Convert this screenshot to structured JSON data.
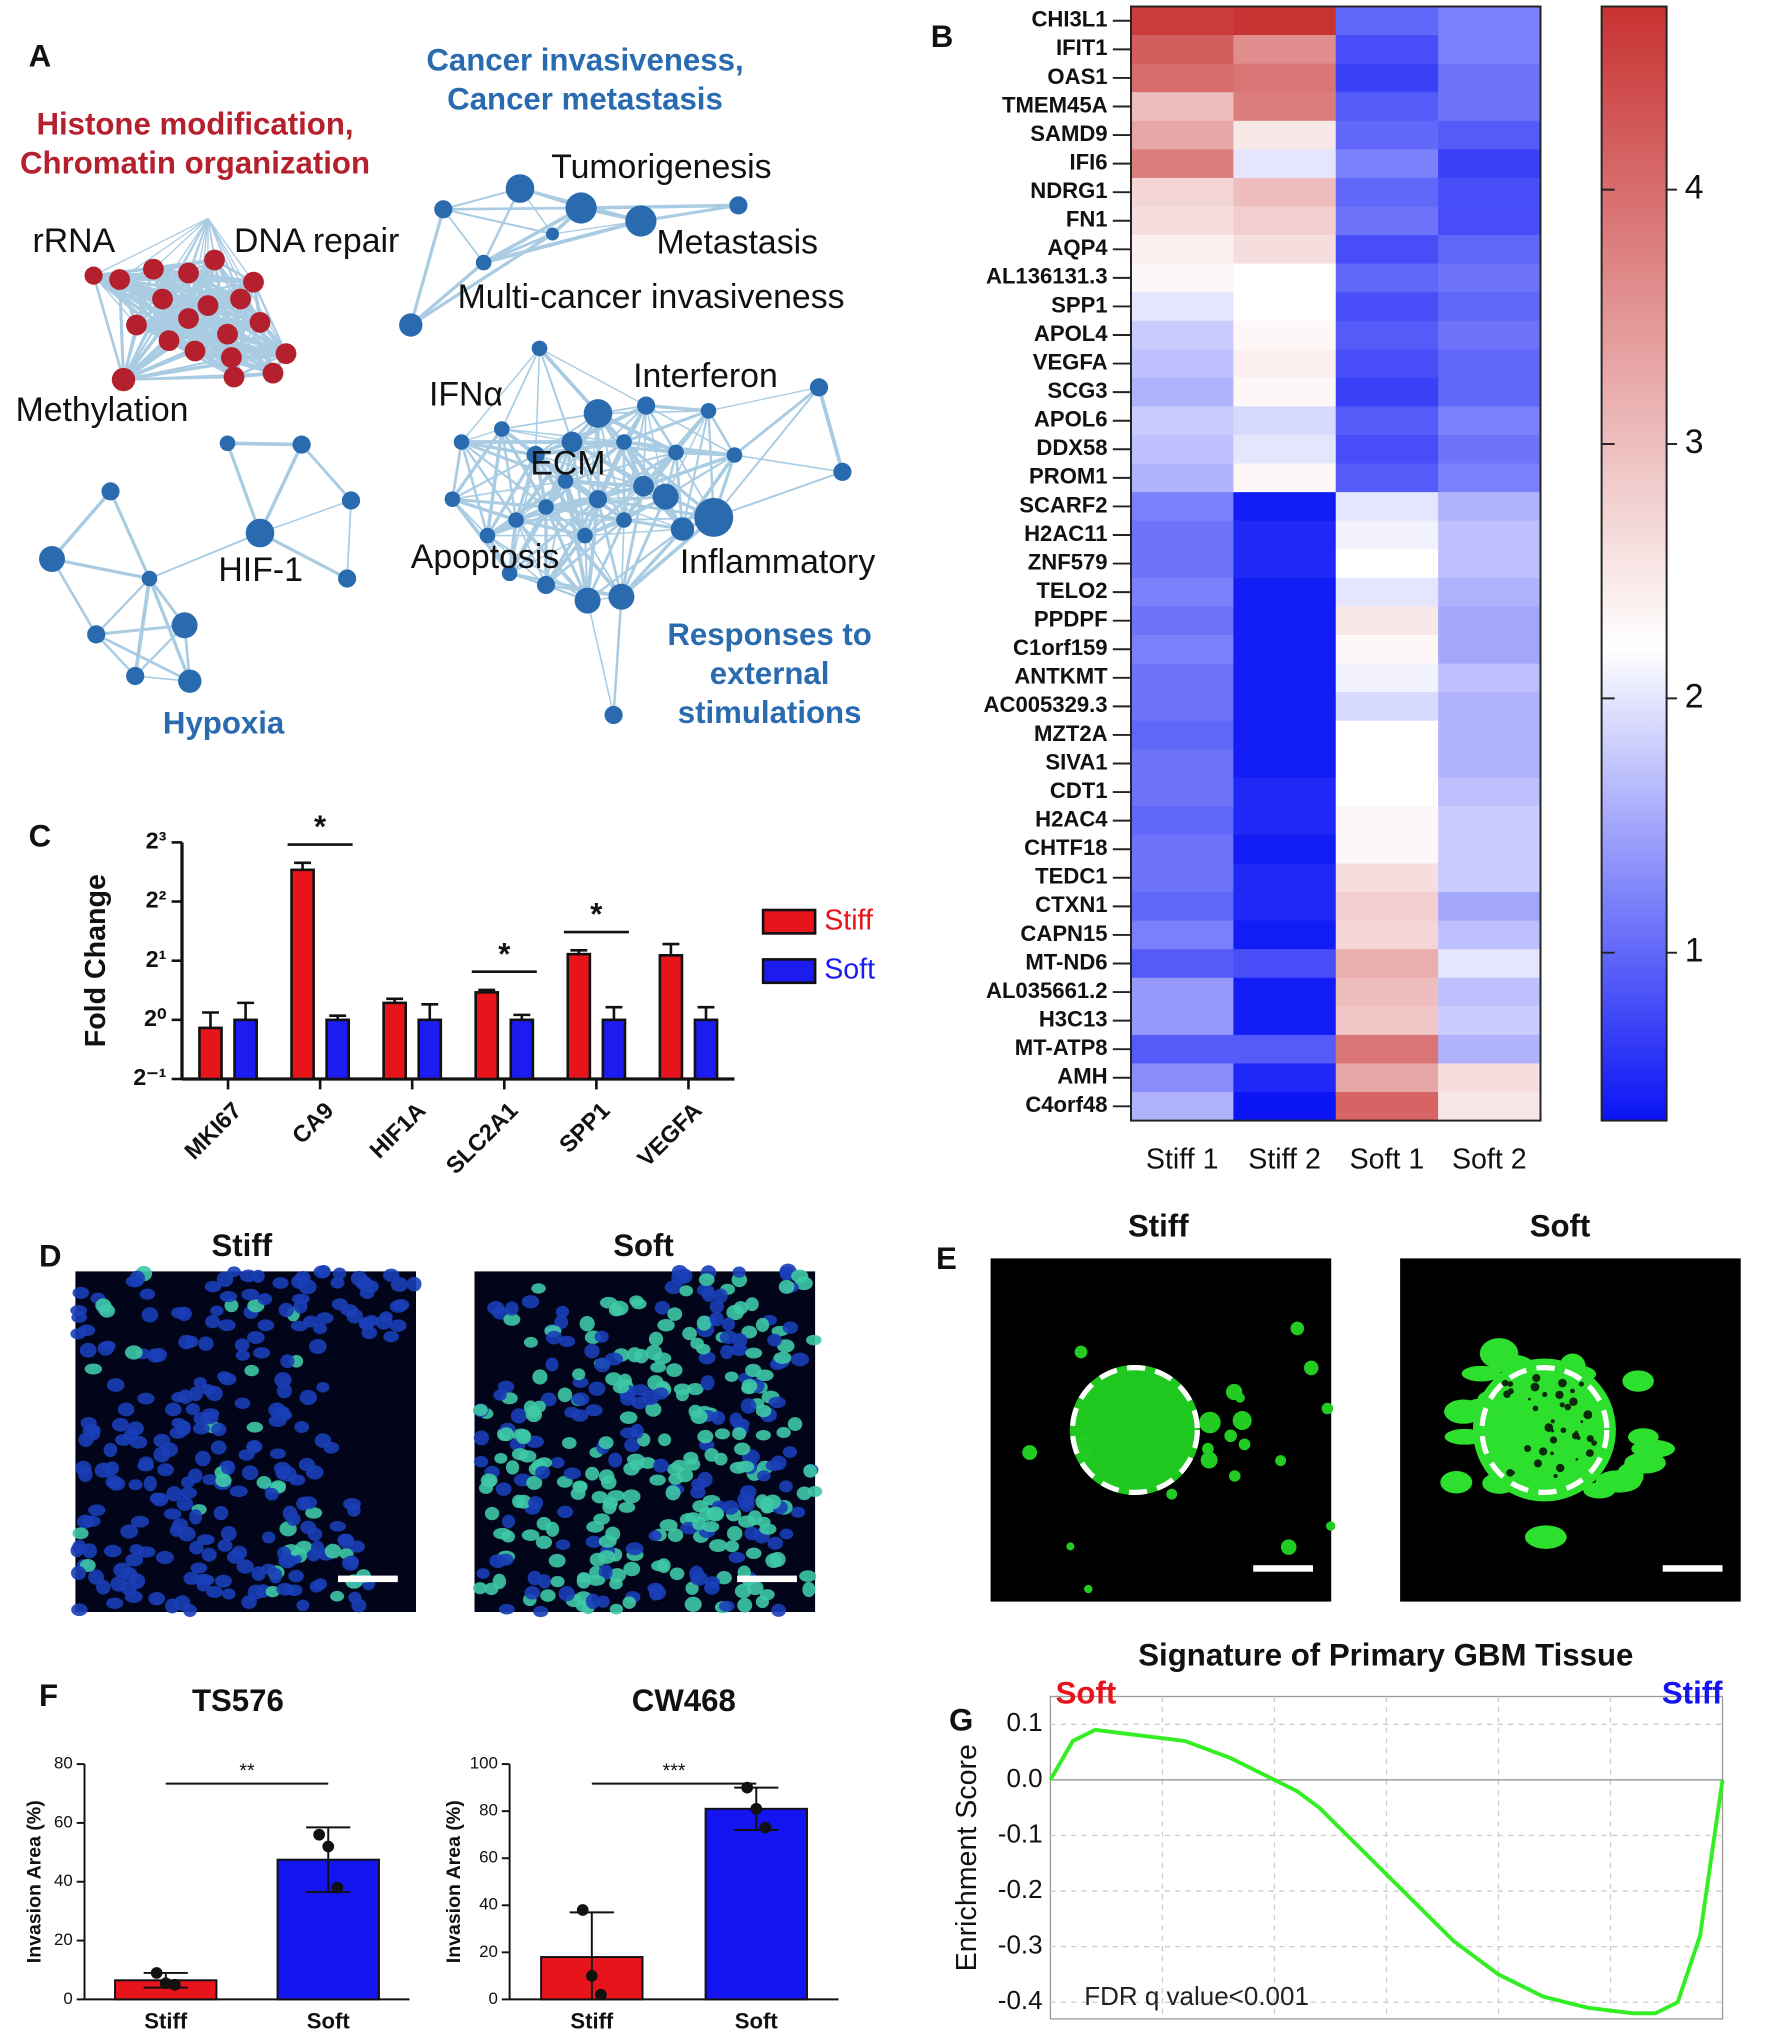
{
  "panel_labels": [
    "A",
    "B",
    "C",
    "D",
    "E",
    "F",
    "G"
  ],
  "network": {
    "clusters": [
      {
        "title": [
          "Histone modification,",
          "Chromatin organization"
        ],
        "color": "#b5202e"
      },
      {
        "title": [
          "Cancer invasiveness,",
          "Cancer metastasis"
        ],
        "color": "#2a6bb0"
      },
      {
        "title": [
          "Hypoxia"
        ],
        "color": "#2a6bb0"
      },
      {
        "title": [
          "Responses to",
          "external",
          "stimulations"
        ],
        "color": "#2a6bb0"
      }
    ],
    "terms": [
      "rRNA",
      "DNA repair",
      "Methylation",
      "Tumorigenesis",
      "Metastasis",
      "Multi-cancer invasiveness",
      "IFNα",
      "Interferon",
      "ECM",
      "Apoptosis",
      "Inflammatory",
      "HIF-1"
    ]
  },
  "images": {
    "D": {
      "titles": [
        "Stiff",
        "Soft"
      ]
    },
    "E": {
      "titles": [
        "Stiff",
        "Soft"
      ]
    }
  },
  "chart_data": [
    {
      "type": "heatmap",
      "rows": [
        "CHI3L1",
        "IFIT1",
        "OAS1",
        "TMEM45A",
        "SAMD9",
        "IFI6",
        "NDRG1",
        "FN1",
        "AQP4",
        "AL136131.3",
        "SPP1",
        "APOL4",
        "VEGFA",
        "SCG3",
        "APOL6",
        "DDX58",
        "PROM1",
        "SCARF2",
        "H2AC11",
        "ZNF579",
        "TELO2",
        "PPDPF",
        "C1orf159",
        "ANTKMT",
        "AC005329.3",
        "MZT2A",
        "SIVA1",
        "CDT1",
        "H2AC4",
        "CHTF18",
        "TEDC1",
        "CTXN1",
        "CAPN15",
        "MT-ND6",
        "AL035661.2",
        "H3C13",
        "MT-ATP8",
        "AMH",
        "C4orf48"
      ],
      "columns": [
        "Stiff 1",
        "Stiff 2",
        "Soft 1",
        "Soft 2"
      ],
      "values": [
        [
          4.6,
          4.7,
          1.0,
          1.2
        ],
        [
          4.2,
          3.6,
          0.8,
          1.2
        ],
        [
          4.0,
          3.9,
          0.7,
          1.1
        ],
        [
          3.0,
          3.8,
          0.9,
          1.1
        ],
        [
          3.3,
          2.5,
          1.0,
          0.9
        ],
        [
          3.8,
          2.0,
          1.2,
          0.7
        ],
        [
          2.7,
          3.0,
          1.0,
          0.8
        ],
        [
          2.6,
          2.8,
          1.1,
          0.8
        ],
        [
          2.4,
          2.6,
          0.8,
          1.0
        ],
        [
          2.3,
          2.2,
          1.0,
          1.1
        ],
        [
          2.0,
          2.2,
          0.8,
          1.0
        ],
        [
          1.8,
          2.3,
          0.9,
          1.1
        ],
        [
          1.7,
          2.4,
          0.8,
          1.0
        ],
        [
          1.6,
          2.3,
          0.7,
          1.0
        ],
        [
          1.8,
          1.9,
          0.9,
          1.2
        ],
        [
          1.7,
          2.0,
          0.8,
          1.1
        ],
        [
          1.6,
          2.3,
          0.9,
          1.2
        ],
        [
          1.2,
          0.4,
          2.0,
          1.6
        ],
        [
          1.1,
          0.5,
          2.1,
          1.7
        ],
        [
          1.1,
          0.5,
          2.2,
          1.7
        ],
        [
          1.2,
          0.4,
          2.0,
          1.6
        ],
        [
          1.1,
          0.4,
          2.5,
          1.5
        ],
        [
          1.2,
          0.4,
          2.3,
          1.5
        ],
        [
          1.1,
          0.4,
          2.1,
          1.7
        ],
        [
          1.1,
          0.4,
          1.9,
          1.6
        ],
        [
          1.0,
          0.4,
          2.2,
          1.6
        ],
        [
          1.1,
          0.4,
          2.2,
          1.6
        ],
        [
          1.1,
          0.5,
          2.2,
          1.7
        ],
        [
          1.0,
          0.5,
          2.3,
          1.8
        ],
        [
          1.1,
          0.4,
          2.3,
          1.8
        ],
        [
          1.1,
          0.5,
          2.6,
          1.8
        ],
        [
          1.0,
          0.5,
          2.8,
          1.5
        ],
        [
          1.2,
          0.4,
          2.7,
          1.7
        ],
        [
          0.9,
          0.8,
          3.2,
          2.0
        ],
        [
          1.4,
          0.4,
          3.0,
          1.7
        ],
        [
          1.4,
          0.4,
          2.9,
          1.8
        ],
        [
          0.9,
          0.9,
          3.9,
          1.6
        ],
        [
          1.3,
          0.5,
          3.3,
          2.6
        ],
        [
          1.6,
          0.35,
          4.1,
          2.5
        ]
      ],
      "colorscale": [
        {
          "value": 0.34,
          "color": "#0a14f5"
        },
        {
          "value": 2.2,
          "color": "#ffffff"
        },
        {
          "value": 4.72,
          "color": "#c83232"
        }
      ],
      "clim": [
        0.34,
        4.72
      ],
      "cticks": [
        1,
        2,
        3,
        4
      ]
    },
    {
      "type": "bar",
      "ylabel": "Fold Change",
      "categories": [
        "MKI67",
        "CA9",
        "HIF1A",
        "SLC2A1",
        "SPP1",
        "VEGFA"
      ],
      "log_scale": true,
      "log_base": 2,
      "ylim": [
        0.5,
        8
      ],
      "yticks": [
        {
          "value": 0.5,
          "label": "2⁻¹"
        },
        {
          "value": 1,
          "label": "2⁰"
        },
        {
          "value": 2,
          "label": "2¹"
        },
        {
          "value": 4,
          "label": "2²"
        },
        {
          "value": 8,
          "label": "2³"
        }
      ],
      "series": [
        {
          "name": "Stiff",
          "color": "#e8141b",
          "values": [
            0.91,
            5.8,
            1.22,
            1.38,
            2.16,
            2.13
          ],
          "errors": [
            0.18,
            0.5,
            0.06,
            0.04,
            0.1,
            0.3
          ]
        },
        {
          "name": "Soft",
          "color": "#1c1cf0",
          "values": [
            1.0,
            1.0,
            1.0,
            1.0,
            1.0,
            1.0
          ],
          "errors": [
            0.22,
            0.05,
            0.2,
            0.06,
            0.16,
            0.16
          ]
        }
      ],
      "annotations": [
        {
          "text": "*",
          "category": "CA9"
        },
        {
          "text": "*",
          "category": "SLC2A1"
        },
        {
          "text": "*",
          "category": "SPP1"
        }
      ]
    },
    {
      "type": "bar_points",
      "title": "TS576",
      "ylabel": "Invasion Area (%)",
      "categories": [
        "Stiff",
        "Soft"
      ],
      "values": [
        6.5,
        47.5
      ],
      "errors": [
        2.5,
        11
      ],
      "colors": [
        "#e8141b",
        "#1414f0"
      ],
      "points": [
        [
          9,
          5.5,
          5
        ],
        [
          56,
          52,
          38
        ]
      ],
      "ylim": [
        0,
        80
      ],
      "yticks": [
        0,
        20,
        40,
        60,
        80
      ],
      "significance": "**"
    },
    {
      "type": "bar_points",
      "title": "CW468",
      "ylabel": "Invasion Area (%)",
      "categories": [
        "Stiff",
        "Soft"
      ],
      "values": [
        18,
        81
      ],
      "errors": [
        19,
        9
      ],
      "colors": [
        "#e8141b",
        "#1414f0"
      ],
      "points": [
        [
          38,
          10,
          2
        ],
        [
          90,
          81,
          73
        ]
      ],
      "ylim": [
        0,
        100
      ],
      "yticks": [
        0,
        20,
        40,
        60,
        80,
        100
      ],
      "significance": "***"
    },
    {
      "type": "line",
      "title": "Signature of Primary GBM Tissue",
      "ylabel": "Enrichment Score",
      "color": "#33ee22",
      "values": [
        0,
        0.07,
        0.09,
        0.085,
        0.08,
        0.075,
        0.07,
        0.055,
        0.04,
        0.02,
        0.0,
        -0.02,
        -0.05,
        -0.09,
        -0.13,
        -0.17,
        -0.21,
        -0.25,
        -0.29,
        -0.32,
        -0.35,
        -0.37,
        -0.39,
        -0.4,
        -0.41,
        -0.415,
        -0.42,
        -0.42,
        -0.4,
        -0.28,
        0.0
      ],
      "ylim": [
        -0.43,
        0.15
      ],
      "yticks": [
        0.1,
        {
          "value": 0,
          "label": "0.0"
        },
        -0.1,
        -0.2,
        -0.3,
        -0.4
      ],
      "grid": true,
      "annotations": [
        {
          "text": "Soft",
          "color": "#e8141b"
        },
        {
          "text": "Stiff",
          "color": "#1414f0"
        },
        {
          "text": "FDR q value<0.001",
          "color": "#222222"
        }
      ]
    }
  ]
}
